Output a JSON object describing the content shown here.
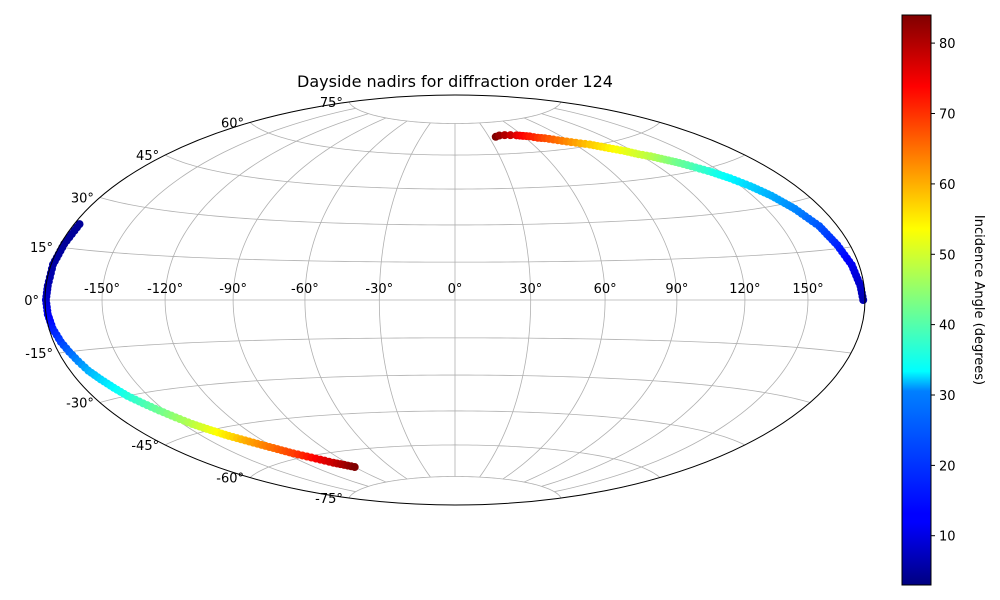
{
  "chart_data": {
    "type": "scatter",
    "projection": "hammer",
    "title": "Dayside nadirs for diffraction order 124",
    "longitude_ticks": [
      -150,
      -120,
      -90,
      -60,
      -30,
      0,
      30,
      60,
      90,
      120,
      150
    ],
    "latitude_ticks": [
      -75,
      -60,
      -45,
      -30,
      -15,
      0,
      15,
      30,
      45,
      60,
      75
    ],
    "longitude_labels": [
      "-150°",
      "-120°",
      "-90°",
      "-60°",
      "-30°",
      "0°",
      "30°",
      "60°",
      "90°",
      "120°",
      "150°"
    ],
    "latitude_labels": [
      "-75°",
      "-60°",
      "-45°",
      "-30°",
      "-15°",
      "0°",
      "15°",
      "30°",
      "45°",
      "60°",
      "75°"
    ],
    "grid": true,
    "colormap": "jet",
    "colorbar": {
      "label": "Incidence Angle (degrees)",
      "range": [
        3,
        84
      ],
      "ticks": [
        10,
        20,
        30,
        40,
        50,
        60,
        70,
        80
      ],
      "tick_labels": [
        "10",
        "20",
        "30",
        "40",
        "50",
        "60",
        "70",
        "80"
      ]
    },
    "tracks": [
      {
        "points": [
          [
            36,
            68
          ],
          [
            40,
            68.5
          ],
          [
            45,
            68.5
          ],
          [
            50,
            68.3
          ],
          [
            55,
            68
          ],
          [
            60,
            67.5
          ],
          [
            65,
            67
          ],
          [
            70,
            66
          ],
          [
            75,
            65.5
          ],
          [
            80,
            64.5
          ],
          [
            85,
            63.5
          ],
          [
            90,
            62.5
          ],
          [
            95,
            61.5
          ],
          [
            100,
            60.5
          ],
          [
            105,
            59
          ],
          [
            110,
            57.5
          ],
          [
            115,
            56
          ],
          [
            120,
            54
          ],
          [
            125,
            52.5
          ],
          [
            130,
            50.5
          ],
          [
            135,
            48.5
          ],
          [
            140,
            46
          ],
          [
            145,
            43.5
          ],
          [
            150,
            40.5
          ],
          [
            155,
            37
          ],
          [
            160,
            33
          ],
          [
            165,
            28
          ],
          [
            170,
            22
          ],
          [
            173,
            16
          ],
          [
            176,
            10
          ],
          [
            178,
            4
          ],
          [
            179,
            0
          ]
        ],
        "incidence": [
          84,
          82,
          80,
          78,
          76,
          74,
          72,
          70,
          68,
          66,
          64,
          62,
          60,
          58,
          56,
          54,
          52,
          50,
          48,
          45,
          42,
          39,
          36,
          33,
          30,
          27,
          24,
          20,
          16,
          12,
          9,
          7
        ]
      },
      {
        "points": [
          [
            -177,
            22
          ],
          [
            -178,
            16
          ],
          [
            -179,
            10
          ],
          [
            -179,
            4
          ],
          [
            -179.5,
            0
          ],
          [
            -179,
            -4
          ],
          [
            -178,
            -8
          ],
          [
            -176,
            -12
          ],
          [
            -174,
            -15
          ],
          [
            -172,
            -18
          ],
          [
            -170,
            -21
          ],
          [
            -167,
            -24
          ],
          [
            -164,
            -27
          ],
          [
            -161,
            -30
          ],
          [
            -157,
            -33
          ],
          [
            -153,
            -36
          ],
          [
            -149,
            -39
          ],
          [
            -145,
            -42
          ],
          [
            -140,
            -45
          ],
          [
            -135,
            -48
          ],
          [
            -130,
            -50.5
          ],
          [
            -125,
            -53
          ],
          [
            -120,
            -55.5
          ],
          [
            -115,
            -58
          ],
          [
            -110,
            -60
          ],
          [
            -105,
            -62
          ],
          [
            -100,
            -64
          ],
          [
            -95,
            -65.5
          ],
          [
            -90,
            -67
          ]
        ],
        "incidence": [
          5,
          5,
          6,
          7,
          9,
          12,
          15,
          18,
          21,
          24,
          27,
          30,
          33,
          36,
          39,
          42,
          45,
          48,
          52,
          56,
          60,
          63,
          66,
          69,
          72,
          75,
          78,
          81,
          84
        ]
      }
    ]
  }
}
